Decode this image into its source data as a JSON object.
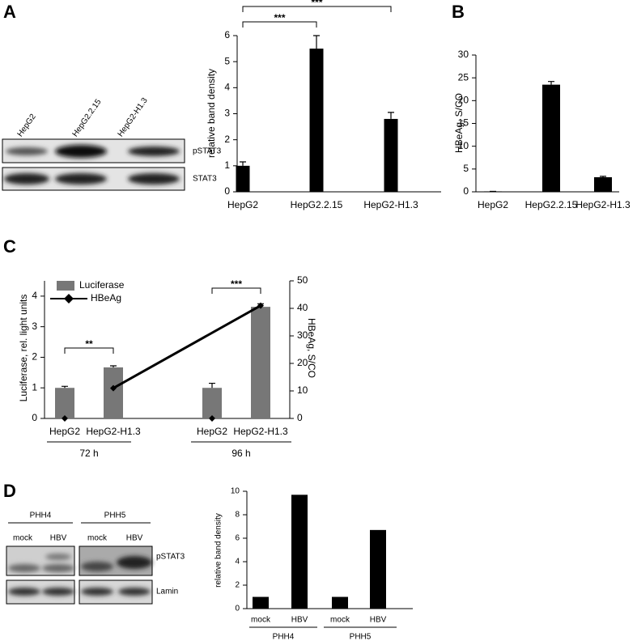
{
  "panel_labels": [
    "A",
    "B",
    "C",
    "D"
  ],
  "blots": [
    {
      "lanes": [
        "HepG2",
        "HepG2.2.15",
        "HepG2-H1.3"
      ],
      "bands": [
        "pSTAT3",
        "STAT3"
      ]
    },
    {
      "groups": [
        {
          "name": "PHH4",
          "lanes": [
            "mock",
            "HBV"
          ]
        },
        {
          "name": "PHH5",
          "lanes": [
            "mock",
            "HBV"
          ]
        }
      ],
      "bands": [
        "pSTAT3",
        "Lamin"
      ]
    }
  ],
  "chart_data": [
    {
      "type": "bar",
      "ylabel": "relative band density",
      "categories": [
        "HepG2",
        "HepG2.2.15",
        "HepG2-H1.3"
      ],
      "values": [
        1,
        5.5,
        2.8
      ],
      "errors": [
        0.15,
        0.5,
        0.25
      ],
      "color": "#000000",
      "ylim": [
        0,
        6
      ],
      "yticks": [
        0,
        1,
        2,
        3,
        4,
        5,
        6
      ],
      "comparisons": [
        {
          "between": [
            0,
            1
          ],
          "label": "***"
        },
        {
          "between": [
            0,
            2
          ],
          "label": "***"
        }
      ]
    },
    {
      "type": "bar",
      "ylabel": "HBeAg, S/CO",
      "categories": [
        "HepG2",
        "HepG2.2.15",
        "HepG2-H1.3"
      ],
      "values": [
        0.1,
        23.5,
        3.2
      ],
      "errors": [
        0,
        0.7,
        0.2
      ],
      "color": "#000000",
      "ylim": [
        0,
        30
      ],
      "yticks": [
        0,
        5,
        10,
        15,
        20,
        25,
        30
      ]
    },
    {
      "type": "combo",
      "ylabel": "Luciferase, rel. light units",
      "y2label": "HBeAg, S/CO",
      "categories": [
        "HepG2",
        "HepG2-H1.3",
        "HepG2",
        "HepG2-H1.3"
      ],
      "groups": [
        "72 h",
        "96 h"
      ],
      "series": [
        {
          "name": "Luciferase",
          "color": "#777777",
          "values": [
            1,
            1.67,
            1,
            3.65
          ],
          "errors": [
            0.05,
            0.05,
            0.15,
            0.1
          ]
        },
        {
          "name": "HBeAg",
          "color": "#000000",
          "axis": "y2",
          "values": [
            0,
            11,
            0,
            41
          ]
        }
      ],
      "ylim": [
        0,
        4.5
      ],
      "yticks": [
        0,
        1,
        2,
        3,
        4
      ],
      "y2lim": [
        0,
        50
      ],
      "y2ticks": [
        0,
        10,
        20,
        30,
        40,
        50
      ],
      "comparisons": [
        {
          "between": [
            0,
            1
          ],
          "label": "**"
        },
        {
          "between": [
            2,
            3
          ],
          "label": "***"
        }
      ]
    },
    {
      "type": "bar",
      "ylabel": "relative band density",
      "categories": [
        "mock",
        "HBV",
        "mock",
        "HBV"
      ],
      "groups": [
        "PHH4",
        "PHH5"
      ],
      "values": [
        1,
        9.7,
        1,
        6.7
      ],
      "color": "#000000",
      "ylim": [
        0,
        10
      ],
      "yticks": [
        0,
        2,
        4,
        6,
        8,
        10
      ]
    }
  ]
}
